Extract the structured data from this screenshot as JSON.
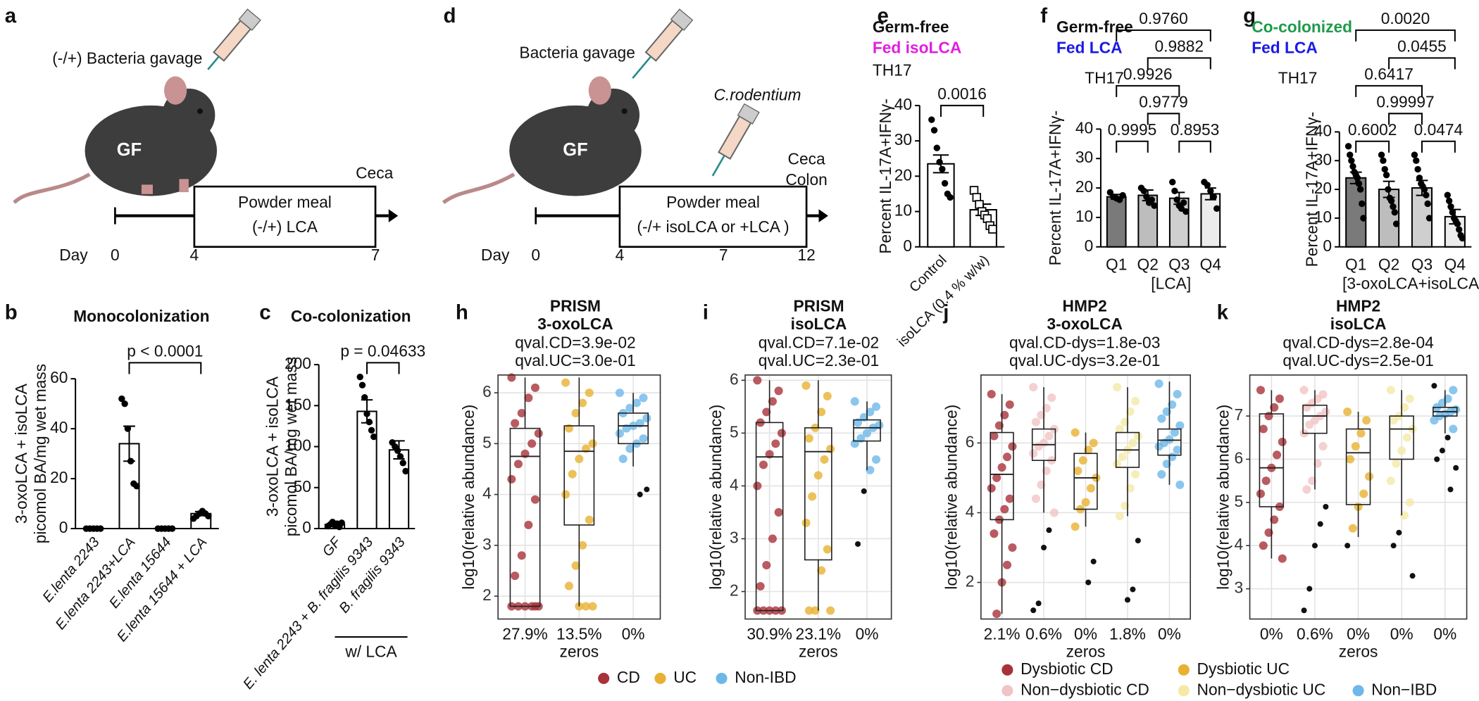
{
  "diagrams": [
    {
      "label": "a",
      "injection": "(-/+) Bacteria gavage",
      "mouse": "GF",
      "endpoint": [
        "Ceca"
      ],
      "box_lines": [
        "Powder meal",
        "(-/+) LCA"
      ],
      "day_label": "Day",
      "days": [
        0,
        4,
        7
      ]
    },
    {
      "label": "d",
      "injection": "Bacteria gavage",
      "second_injection": "C.rodentium",
      "mouse": "GF",
      "endpoint": [
        "Ceca",
        "Colon"
      ],
      "box_lines": [
        "Powder meal",
        "(-/+ isoLCA or +LCA )"
      ],
      "day_label": "Day",
      "days": [
        0,
        4,
        7,
        12
      ]
    }
  ],
  "chart_data": [
    {
      "type": "bar",
      "label": "b",
      "title": "Monocolonization",
      "ylabel": [
        "3-oxoLCA + isoLCA",
        "picomol BA/mg wet mass"
      ],
      "categories": [
        "E.lenta 2243",
        "E.lenta 2243+LCA",
        "E.lenta 15644",
        "E.lenta 15644 + LCA"
      ],
      "values": [
        0,
        34,
        0,
        6
      ],
      "errors": [
        0,
        7,
        0,
        0.8
      ],
      "color": "#ffffff",
      "points": [
        [
          0,
          0,
          0,
          0,
          0
        ],
        [
          52,
          50,
          40,
          27,
          18,
          17
        ],
        [
          0,
          0,
          0,
          0,
          0
        ],
        [
          4,
          5,
          6,
          7,
          6,
          5
        ]
      ],
      "ylim": [
        0,
        60
      ],
      "yticks": [
        0,
        20,
        40,
        60
      ],
      "comparisons": [
        {
          "pair": [
            "E.lenta 2243+LCA",
            "E.lenta 15644 + LCA"
          ],
          "p": "p < 0.0001"
        }
      ]
    },
    {
      "type": "bar",
      "label": "c",
      "title": "Co-colonization",
      "ylabel": [
        "3-oxoLCA + isoLCA",
        "picomol BA/mg wet mass"
      ],
      "categories": [
        "GF",
        "E. lenta 2243 + B. fragilis 9343",
        "B. fragilis 9343"
      ],
      "values": [
        5,
        143,
        96
      ],
      "errors": [
        1.5,
        14,
        11
      ],
      "color": "#ffffff",
      "points": [
        [
          3,
          5,
          8,
          4,
          6,
          2,
          7
        ],
        [
          185,
          175,
          160,
          140,
          130,
          120,
          112
        ],
        [
          105,
          100,
          95,
          88,
          80,
          70
        ]
      ],
      "ylim": [
        0,
        200
      ],
      "yticks": [
        0,
        50,
        100,
        150,
        200
      ],
      "comparisons": [
        {
          "pair": [
            "E. lenta 2243 + B. fragilis 9343",
            "B. fragilis 9343"
          ],
          "p": "p = 0.04633"
        }
      ],
      "footer": "w/ LCA"
    },
    {
      "type": "bar",
      "label": "e",
      "title": "Germ-free",
      "subtitle": "Fed isoLCA",
      "subtitle_color": "#e01fe0",
      "annotation": "TH17",
      "ylabel": "Percent IL-17A+IFNγ-",
      "categories": [
        "Control",
        "isoLCA (0.4 % w/w)"
      ],
      "values": [
        23.5,
        10.5
      ],
      "errors": [
        2.5,
        1.6
      ],
      "color": "#ffffff",
      "markers": [
        "circle",
        "square"
      ],
      "points": [
        [
          36,
          33,
          28,
          24,
          22,
          18,
          15,
          14
        ],
        [
          16,
          14,
          12,
          10,
          9,
          8,
          6,
          5
        ]
      ],
      "ylim": [
        0,
        40
      ],
      "yticks": [
        0,
        10,
        20,
        30,
        40
      ],
      "comparisons": [
        {
          "pair": [
            "Control",
            "isoLCA (0.4 % w/w)"
          ],
          "p": "0.0016"
        }
      ]
    },
    {
      "type": "bar",
      "label": "f",
      "title": "Germ-free",
      "subtitle": "Fed LCA",
      "subtitle_color": "#1a1ae6",
      "annotation": "TH17",
      "ylabel": "Percent IL-17A+IFNγ-",
      "xlabel": "[LCA]",
      "categories": [
        "Q1",
        "Q2",
        "Q3",
        "Q4"
      ],
      "values": [
        17,
        17.5,
        16.5,
        18
      ],
      "errors": [
        0.8,
        1.8,
        2,
        2
      ],
      "colors": [
        "#7a7a7a",
        "#bdbdbd",
        "#cfcfcf",
        "#ececec"
      ],
      "points": [
        [
          18.5,
          17,
          16.5,
          16,
          17.5
        ],
        [
          20,
          19,
          17,
          15,
          16,
          14
        ],
        [
          22,
          19,
          16,
          14,
          13,
          15,
          12
        ],
        [
          22,
          21,
          19,
          17,
          13
        ]
      ],
      "ylim": [
        0,
        40
      ],
      "yticks": [
        0,
        10,
        20,
        30,
        40
      ],
      "comparisons": [
        {
          "pair": [
            "Q1",
            "Q2"
          ],
          "p": "0.9995"
        },
        {
          "pair": [
            "Q3",
            "Q4"
          ],
          "p": "0.8953"
        },
        {
          "pair": [
            "Q2",
            "Q3"
          ],
          "p": "0.9779"
        },
        {
          "pair": [
            "Q1",
            "Q3"
          ],
          "p": "0.9926"
        },
        {
          "pair": [
            "Q2",
            "Q4"
          ],
          "p": "0.9882"
        },
        {
          "pair": [
            "Q1",
            "Q4"
          ],
          "p": "0.9760"
        }
      ]
    },
    {
      "type": "bar",
      "label": "g",
      "title": "Co-colonized",
      "title_color": "#1f9a4a",
      "subtitle": "Fed LCA",
      "subtitle_color": "#1a1ae6",
      "annotation": "TH17",
      "ylabel": "Percent IL-17A+IFNγ-",
      "xlabel": "[3-oxoLCA+isoLCA]",
      "categories": [
        "Q1",
        "Q2",
        "Q3",
        "Q4"
      ],
      "values": [
        24,
        20,
        20.5,
        10.5
      ],
      "errors": [
        2,
        2.8,
        2.6,
        2.5
      ],
      "colors": [
        "#7a7a7a",
        "#bdbdbd",
        "#cfcfcf",
        "#ececec"
      ],
      "points": [
        [
          35,
          32,
          30,
          28,
          26,
          25,
          24,
          22,
          20,
          15,
          10
        ],
        [
          32,
          30,
          27,
          25,
          20,
          17,
          16,
          14,
          12,
          8
        ],
        [
          32,
          30,
          27,
          24,
          22,
          21,
          20,
          18,
          15,
          10
        ],
        [
          18,
          16,
          14,
          12,
          10,
          9,
          8,
          6,
          4,
          3
        ]
      ],
      "ylim": [
        0,
        40
      ],
      "yticks": [
        0,
        10,
        20,
        30,
        40
      ],
      "comparisons": [
        {
          "pair": [
            "Q1",
            "Q2"
          ],
          "p": "0.6002"
        },
        {
          "pair": [
            "Q3",
            "Q4"
          ],
          "p": "0.0474"
        },
        {
          "pair": [
            "Q2",
            "Q3"
          ],
          "p": "0.99997"
        },
        {
          "pair": [
            "Q1",
            "Q3"
          ],
          "p": "0.6417"
        },
        {
          "pair": [
            "Q2",
            "Q4"
          ],
          "p": "0.0455"
        },
        {
          "pair": [
            "Q1",
            "Q4"
          ],
          "p": "0.0020"
        }
      ]
    },
    {
      "type": "box",
      "label": "h",
      "title": "PRISM",
      "subtitle": "3-oxoLCA",
      "annotations": [
        "qval.CD=3.9e-02",
        "qval.UC=3.0e-01"
      ],
      "ylabel": "log10(relative abundance)",
      "xlabel": "zeros",
      "ylim": [
        1.55,
        6.35
      ],
      "yticks": [
        2,
        3,
        4,
        5,
        6
      ],
      "grid": true,
      "series": [
        {
          "name": "CD",
          "color": "#a8323a",
          "zero_label": "27.9%",
          "whisker_low": 1.8,
          "q1": 1.8,
          "median": 4.75,
          "q3": 5.3,
          "whisker_high": 6.3,
          "values": [
            6.3,
            6.1,
            5.9,
            5.6,
            5.4,
            5.2,
            5.0,
            4.8,
            4.6,
            4.3,
            3.9,
            3.4,
            2.8,
            2.4,
            1.8,
            1.8,
            1.8,
            1.8,
            1.8,
            1.8
          ]
        },
        {
          "name": "UC",
          "color": "#e8b131",
          "zero_label": "13.5%",
          "whisker_low": 1.8,
          "q1": 3.4,
          "median": 4.85,
          "q3": 5.35,
          "whisker_high": 6.3,
          "values": [
            6.2,
            6.0,
            5.8,
            5.6,
            5.3,
            5.0,
            4.9,
            4.7,
            4.4,
            4.0,
            3.5,
            3.0,
            2.6,
            2.2,
            1.8,
            1.8,
            1.8
          ]
        },
        {
          "name": "Non-IBD",
          "color": "#6db8e8",
          "zero_label": "0%",
          "whisker_low": 4.55,
          "q1": 5.0,
          "median": 5.35,
          "q3": 5.6,
          "whisker_high": 6.0,
          "values": [
            6.0,
            5.9,
            5.8,
            5.7,
            5.6,
            5.5,
            5.4,
            5.35,
            5.3,
            5.2,
            5.1,
            5.0,
            4.9,
            4.7,
            4.1,
            4.0
          ]
        }
      ]
    },
    {
      "type": "box",
      "label": "i",
      "title": "PRISM",
      "subtitle": "isoLCA",
      "annotations": [
        "qval.CD=7.1e-02",
        "qval.UC=2.3e-01"
      ],
      "ylabel": "log10(relative abundance)",
      "xlabel": "zeros",
      "ylim": [
        1.48,
        6.1
      ],
      "yticks": [
        2,
        3,
        4,
        5,
        6
      ],
      "grid": true,
      "series": [
        {
          "color": "#a8323a",
          "zero_label": "30.9%",
          "whisker_low": 1.64,
          "q1": 1.64,
          "median": 4.55,
          "q3": 5.2,
          "whisker_high": 6.0,
          "values": [
            6.0,
            5.8,
            5.6,
            5.4,
            5.2,
            5.0,
            4.8,
            4.6,
            4.4,
            4.0,
            3.5,
            3.0,
            2.5,
            2.1,
            1.64,
            1.64,
            1.64,
            1.64,
            1.64
          ]
        },
        {
          "color": "#e8b131",
          "zero_label": "23.1%",
          "whisker_low": 1.64,
          "q1": 2.6,
          "median": 4.65,
          "q3": 5.1,
          "whisker_high": 6.0,
          "values": [
            5.9,
            5.7,
            5.4,
            5.1,
            4.9,
            4.7,
            4.5,
            4.2,
            3.8,
            3.3,
            2.8,
            2.4,
            1.64,
            1.64,
            1.64
          ]
        },
        {
          "color": "#6db8e8",
          "zero_label": "0%",
          "whisker_low": 4.3,
          "q1": 4.85,
          "median": 5.1,
          "q3": 5.25,
          "whisker_high": 5.6,
          "values": [
            5.6,
            5.5,
            5.4,
            5.3,
            5.2,
            5.15,
            5.1,
            5.0,
            4.9,
            4.8,
            4.5,
            4.3,
            3.9,
            2.9
          ]
        }
      ]
    },
    {
      "type": "box",
      "label": "j",
      "title": "HMP2",
      "subtitle": "3-oxoLCA",
      "annotations": [
        "qval.CD-dys=1.8e-03",
        "qval.UC-dys=3.2e-01"
      ],
      "ylabel": "log10(relative abundance)",
      "xlabel": "zeros",
      "ylim": [
        0.95,
        7.95
      ],
      "yticks": [
        2,
        4,
        6
      ],
      "grid": true,
      "series": [
        {
          "name": "Dysbiotic CD",
          "color": "#a8323a",
          "zero_label": "2.1%",
          "whisker_low": 1.1,
          "q1": 3.8,
          "median": 5.1,
          "q3": 6.3,
          "whisker_high": 7.4,
          "values": [
            7.4,
            7.1,
            6.8,
            6.5,
            6.2,
            5.9,
            5.6,
            5.3,
            5.0,
            4.7,
            4.4,
            4.1,
            3.8,
            3.4,
            3.0,
            2.5,
            2.0,
            1.1
          ]
        },
        {
          "name": "Non−dysbiotic CD",
          "color": "#f1c4c6",
          "zero_label": "0.6%",
          "whisker_low": 4.0,
          "q1": 5.5,
          "median": 5.95,
          "q3": 6.4,
          "whisker_high": 7.6,
          "values": [
            7.6,
            7.3,
            7.0,
            6.8,
            6.6,
            6.4,
            6.2,
            6.0,
            5.9,
            5.7,
            5.5,
            5.2,
            4.8,
            4.4,
            4.0,
            3.5,
            3.0,
            1.4,
            1.2
          ]
        },
        {
          "name": "Dysbiotic UC",
          "color": "#e8b131",
          "zero_label": "0%",
          "whisker_low": 3.6,
          "q1": 4.1,
          "median": 5.0,
          "q3": 5.7,
          "whisker_high": 6.3,
          "values": [
            6.3,
            6.0,
            5.8,
            5.5,
            5.2,
            5.0,
            4.7,
            4.3,
            4.1,
            3.6,
            2.6,
            2.0
          ]
        },
        {
          "name": "Non−dysbiotic UC",
          "color": "#f3eaa6",
          "zero_label": "1.8%",
          "whisker_low": 3.9,
          "q1": 5.3,
          "median": 5.8,
          "q3": 6.3,
          "whisker_high": 7.6,
          "values": [
            7.6,
            7.2,
            6.9,
            6.6,
            6.4,
            6.2,
            6.0,
            5.8,
            5.6,
            5.4,
            5.1,
            4.7,
            4.2,
            3.9,
            3.2,
            1.8,
            1.5
          ]
        },
        {
          "name": "Non−IBD",
          "color": "#6db8e8",
          "zero_label": "0%",
          "whisker_low": 4.8,
          "q1": 5.65,
          "median": 6.08,
          "q3": 6.4,
          "whisker_high": 7.76,
          "values": [
            7.7,
            7.4,
            7.1,
            6.9,
            6.7,
            6.5,
            6.3,
            6.1,
            6.0,
            5.9,
            5.8,
            5.6,
            5.4,
            5.1,
            4.8
          ]
        }
      ]
    },
    {
      "type": "box",
      "label": "k",
      "title": "HMP2",
      "subtitle": "isoLCA",
      "annotations": [
        "qval.CD-dys=2.8e-04",
        "qval.UC-dys=2.5e-01"
      ],
      "ylabel": "log10(relative abundance)",
      "xlabel": "zeros",
      "ylim": [
        2.3,
        7.95
      ],
      "yticks": [
        3,
        4,
        5,
        6,
        7
      ],
      "grid": true,
      "series": [
        {
          "color": "#a8323a",
          "zero_label": "0%",
          "whisker_low": 3.7,
          "q1": 4.9,
          "median": 5.8,
          "q3": 7.05,
          "whisker_high": 7.6,
          "values": [
            7.6,
            7.4,
            7.2,
            7.0,
            6.7,
            6.4,
            6.1,
            5.8,
            5.5,
            5.2,
            4.9,
            4.6,
            4.3,
            4.0,
            3.7
          ]
        },
        {
          "color": "#f1c4c6",
          "zero_label": "0.6%",
          "whisker_low": 5.3,
          "q1": 6.6,
          "median": 7.0,
          "q3": 7.25,
          "whisker_high": 7.6,
          "values": [
            7.6,
            7.5,
            7.4,
            7.3,
            7.2,
            7.1,
            7.0,
            6.9,
            6.8,
            6.6,
            6.3,
            5.9,
            5.5,
            5.3,
            4.9,
            4.5,
            4.0,
            3.0,
            2.5
          ]
        },
        {
          "color": "#e8b131",
          "zero_label": "0%",
          "whisker_low": 4.2,
          "q1": 4.95,
          "median": 6.15,
          "q3": 6.7,
          "whisker_high": 7.1,
          "values": [
            7.1,
            6.9,
            6.6,
            6.3,
            6.0,
            5.6,
            5.2,
            4.9,
            4.4,
            4.0
          ]
        },
        {
          "color": "#f3eaa6",
          "zero_label": "0%",
          "whisker_low": 4.7,
          "q1": 6.0,
          "median": 6.7,
          "q3": 7.0,
          "whisker_high": 7.6,
          "values": [
            7.6,
            7.4,
            7.2,
            7.0,
            6.9,
            6.7,
            6.5,
            6.2,
            5.9,
            5.5,
            5.0,
            4.7,
            4.3,
            4.0,
            3.3
          ]
        },
        {
          "color": "#6db8e8",
          "zero_label": "0%",
          "whisker_low": 6.6,
          "q1": 7.0,
          "median": 7.1,
          "q3": 7.2,
          "whisker_high": 7.6,
          "values": [
            7.7,
            7.6,
            7.4,
            7.3,
            7.2,
            7.15,
            7.1,
            7.05,
            7.0,
            6.9,
            6.7,
            6.5,
            6.2,
            6.0,
            5.8,
            5.3
          ]
        }
      ]
    }
  ]
}
